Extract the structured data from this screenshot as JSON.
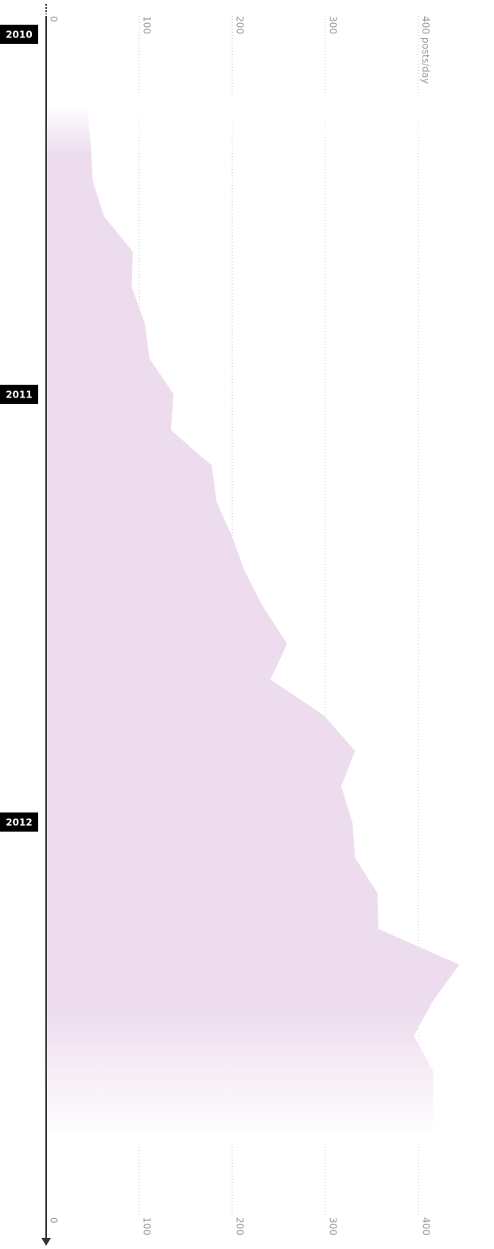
{
  "chart_data": {
    "type": "area",
    "orientation": "vertical",
    "categories": [
      "2010",
      null,
      null,
      null,
      null,
      null,
      null,
      null,
      null,
      null,
      null,
      null,
      "2011",
      null,
      null,
      null,
      null,
      null,
      null,
      null,
      null,
      null,
      null,
      null,
      "2012",
      null,
      null,
      null,
      null,
      null,
      null,
      null,
      null,
      null
    ],
    "values": [
      null,
      null,
      null,
      null,
      44,
      48,
      50,
      62,
      93,
      92,
      106,
      111,
      137,
      134,
      178,
      183,
      200,
      214,
      234,
      259,
      241,
      298,
      332,
      317,
      329,
      332,
      356,
      357,
      444,
      416,
      395,
      416,
      416,
      416
    ],
    "color": "#eddcee",
    "unit": "posts/day",
    "ylim": [
      0,
      450
    ],
    "yticks": [
      0,
      100,
      200,
      300,
      400
    ],
    "grid": true
  }
}
